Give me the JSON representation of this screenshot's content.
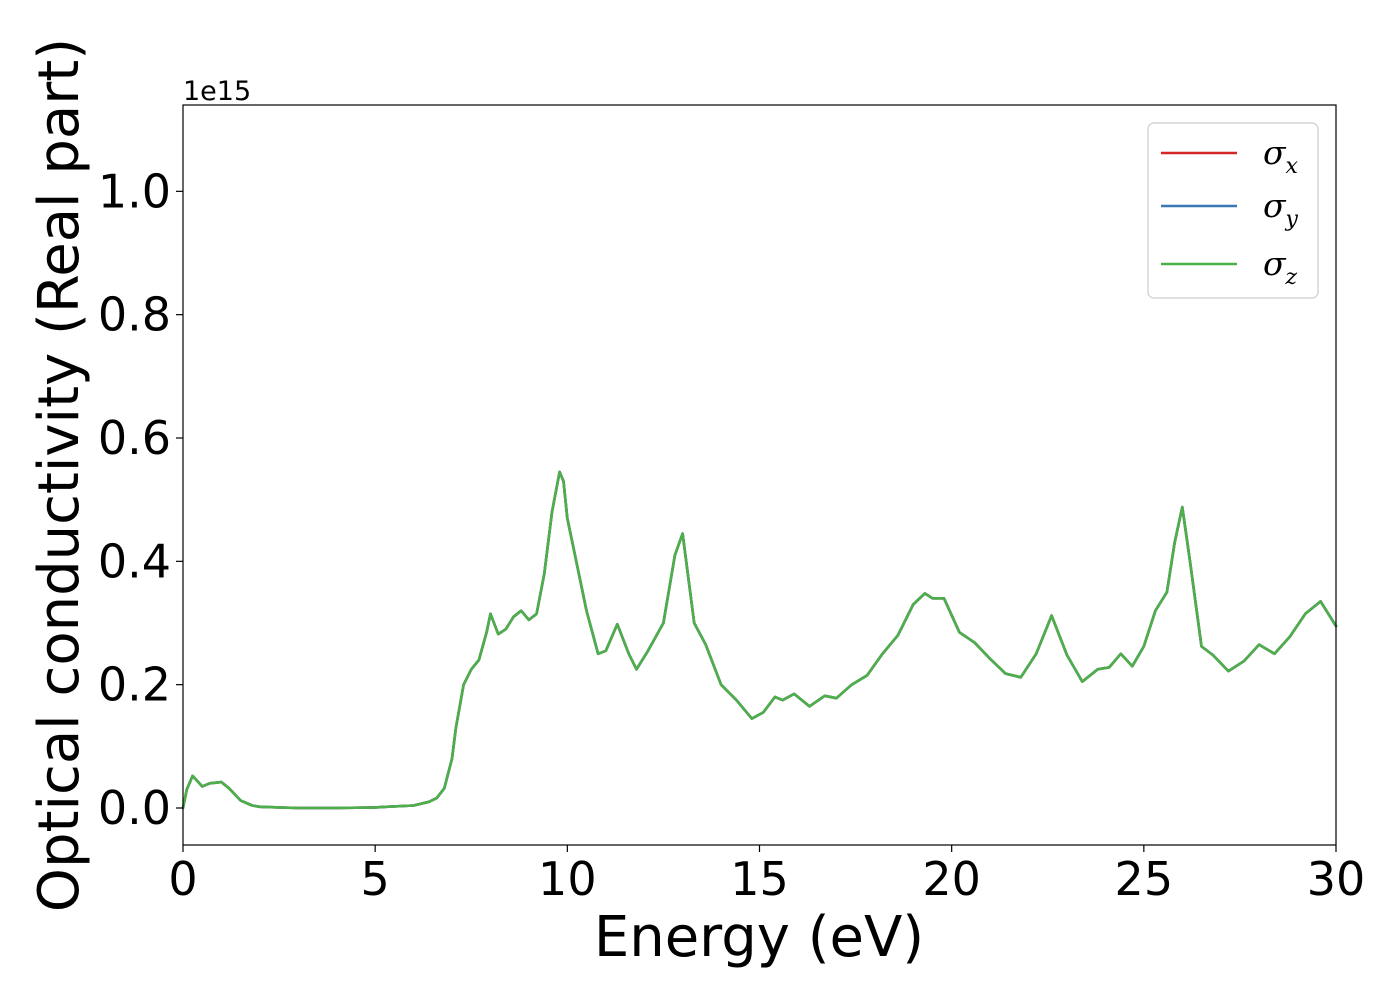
{
  "chart_data": {
    "type": "line",
    "xlabel": "Energy (eV)",
    "ylabel": "Optical conductivity (Real part)",
    "y_offset_text": "1e15",
    "xlim": [
      0,
      30
    ],
    "ylim": [
      -0.06,
      1.14
    ],
    "x_ticks": [
      0,
      5,
      10,
      15,
      20,
      25,
      30
    ],
    "x_tick_labels": [
      "0",
      "5",
      "10",
      "15",
      "20",
      "25",
      "30"
    ],
    "y_ticks": [
      0.0,
      0.2,
      0.4,
      0.6,
      0.8,
      1.0
    ],
    "y_tick_labels": [
      "0.0",
      "0.2",
      "0.4",
      "0.6",
      "0.8",
      "1.0"
    ],
    "grid": false,
    "legend_position": "top-right",
    "x": [
      0,
      0.1,
      0.25,
      0.5,
      0.7,
      1.0,
      1.2,
      1.5,
      1.8,
      2.0,
      2.5,
      3,
      4,
      5,
      6,
      6.4,
      6.6,
      6.8,
      7.0,
      7.1,
      7.3,
      7.5,
      7.7,
      7.9,
      8.0,
      8.2,
      8.4,
      8.6,
      8.8,
      9.0,
      9.2,
      9.4,
      9.6,
      9.8,
      9.9,
      10.0,
      10.2,
      10.5,
      10.8,
      11.0,
      11.3,
      11.6,
      11.8,
      12.1,
      12.5,
      12.8,
      13.0,
      13.3,
      13.6,
      14.0,
      14.4,
      14.8,
      15.1,
      15.4,
      15.6,
      15.9,
      16.3,
      16.7,
      17.0,
      17.4,
      17.8,
      18.2,
      18.6,
      19.0,
      19.3,
      19.5,
      19.8,
      20.2,
      20.6,
      21.0,
      21.4,
      21.8,
      22.2,
      22.6,
      23.0,
      23.4,
      23.8,
      24.1,
      24.4,
      24.7,
      25.0,
      25.3,
      25.6,
      25.8,
      26.0,
      26.2,
      26.5,
      26.8,
      27.2,
      27.6,
      28.0,
      28.4,
      28.8,
      29.2,
      29.6,
      30.0
    ],
    "series": [
      {
        "name": "σx",
        "color": "#d62728",
        "values": [
          0.0,
          0.03,
          0.052,
          0.035,
          0.04,
          0.042,
          0.032,
          0.012,
          0.004,
          0.002,
          0.001,
          0.0,
          0.0,
          0.001,
          0.004,
          0.01,
          0.016,
          0.032,
          0.08,
          0.13,
          0.2,
          0.225,
          0.24,
          0.285,
          0.315,
          0.282,
          0.29,
          0.31,
          0.32,
          0.305,
          0.315,
          0.38,
          0.48,
          0.545,
          0.53,
          0.47,
          0.41,
          0.32,
          0.25,
          0.255,
          0.298,
          0.25,
          0.225,
          0.255,
          0.3,
          0.41,
          0.445,
          0.3,
          0.265,
          0.2,
          0.175,
          0.145,
          0.155,
          0.18,
          0.175,
          0.185,
          0.165,
          0.182,
          0.178,
          0.2,
          0.215,
          0.25,
          0.28,
          0.33,
          0.348,
          0.34,
          0.34,
          0.285,
          0.268,
          0.242,
          0.218,
          0.212,
          0.25,
          0.312,
          0.248,
          0.205,
          0.225,
          0.228,
          0.25,
          0.23,
          0.262,
          0.32,
          0.35,
          0.43,
          0.488,
          0.4,
          0.262,
          0.248,
          0.222,
          0.238,
          0.265,
          0.25,
          0.278,
          0.315,
          0.335,
          0.295
        ]
      },
      {
        "name": "σy",
        "color": "#3a78b4",
        "values": [
          0.0,
          0.03,
          0.052,
          0.035,
          0.04,
          0.042,
          0.032,
          0.012,
          0.004,
          0.002,
          0.001,
          0.0,
          0.0,
          0.001,
          0.004,
          0.01,
          0.016,
          0.032,
          0.08,
          0.13,
          0.2,
          0.225,
          0.24,
          0.285,
          0.315,
          0.282,
          0.29,
          0.31,
          0.32,
          0.305,
          0.315,
          0.38,
          0.48,
          0.545,
          0.53,
          0.47,
          0.41,
          0.32,
          0.25,
          0.255,
          0.298,
          0.25,
          0.225,
          0.255,
          0.3,
          0.41,
          0.445,
          0.3,
          0.265,
          0.2,
          0.175,
          0.145,
          0.155,
          0.18,
          0.175,
          0.185,
          0.165,
          0.182,
          0.178,
          0.2,
          0.215,
          0.25,
          0.28,
          0.33,
          0.348,
          0.34,
          0.34,
          0.285,
          0.268,
          0.242,
          0.218,
          0.212,
          0.25,
          0.312,
          0.248,
          0.205,
          0.225,
          0.228,
          0.25,
          0.23,
          0.262,
          0.32,
          0.35,
          0.43,
          0.488,
          0.4,
          0.262,
          0.248,
          0.222,
          0.238,
          0.265,
          0.25,
          0.278,
          0.315,
          0.335,
          0.295
        ]
      },
      {
        "name": "σz",
        "color": "#4daf4a",
        "values": [
          0.0,
          0.03,
          0.052,
          0.035,
          0.04,
          0.042,
          0.032,
          0.012,
          0.004,
          0.002,
          0.001,
          0.0,
          0.0,
          0.001,
          0.004,
          0.01,
          0.016,
          0.032,
          0.08,
          0.13,
          0.2,
          0.225,
          0.24,
          0.285,
          0.315,
          0.282,
          0.29,
          0.31,
          0.32,
          0.305,
          0.315,
          0.38,
          0.48,
          0.545,
          0.53,
          0.47,
          0.41,
          0.32,
          0.25,
          0.255,
          0.298,
          0.25,
          0.225,
          0.255,
          0.3,
          0.41,
          0.445,
          0.3,
          0.265,
          0.2,
          0.175,
          0.145,
          0.155,
          0.18,
          0.175,
          0.185,
          0.165,
          0.182,
          0.178,
          0.2,
          0.215,
          0.25,
          0.28,
          0.33,
          0.348,
          0.34,
          0.34,
          0.285,
          0.268,
          0.242,
          0.218,
          0.212,
          0.25,
          0.312,
          0.248,
          0.205,
          0.225,
          0.228,
          0.25,
          0.23,
          0.262,
          0.32,
          0.35,
          0.43,
          0.488,
          0.4,
          0.262,
          0.248,
          0.222,
          0.238,
          0.265,
          0.25,
          0.278,
          0.315,
          0.335,
          0.295
        ]
      }
    ],
    "legend": [
      {
        "symbol": "σ",
        "sub": "x"
      },
      {
        "symbol": "σ",
        "sub": "y"
      },
      {
        "symbol": "σ",
        "sub": "z"
      }
    ]
  }
}
